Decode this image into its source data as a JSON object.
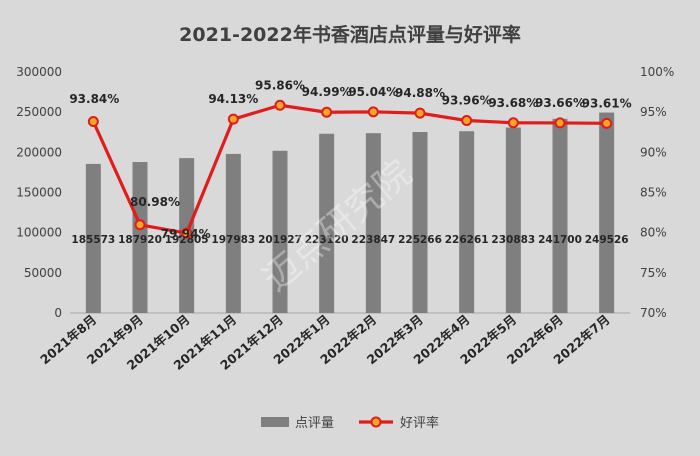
{
  "chart_data": {
    "type": "bar+line",
    "title": "2021-2022年书香酒店点评量与好评率",
    "categories": [
      "2021年8月",
      "2021年9月",
      "2021年10月",
      "2021年11月",
      "2021年12月",
      "2022年1月",
      "2022年2月",
      "2022年3月",
      "2022年4月",
      "2022年5月",
      "2022年6月",
      "2022年7月"
    ],
    "y_left": {
      "min": 0,
      "max": 300000,
      "step": 50000,
      "ticks": [
        "0",
        "50000",
        "100000",
        "150000",
        "200000",
        "250000",
        "300000"
      ]
    },
    "y_right": {
      "min": 70,
      "max": 100,
      "step": 5,
      "ticks": [
        "70%",
        "75%",
        "80%",
        "85%",
        "90%",
        "95%",
        "100%"
      ]
    },
    "series": [
      {
        "name": "点评量",
        "type": "bar",
        "axis": "left",
        "color": "#7f7f7f",
        "values": [
          185573,
          187920,
          192805,
          197983,
          201927,
          223120,
          223847,
          225266,
          226261,
          230883,
          241700,
          249526
        ],
        "labels": [
          "185573",
          "187920",
          "192805",
          "197983",
          "201927",
          "223120",
          "223847",
          "225266",
          "226261",
          "230883",
          "241700",
          "249526"
        ]
      },
      {
        "name": "好评率",
        "type": "line",
        "axis": "right",
        "color": "#e01c1c",
        "marker_fill": "#f5a623",
        "values": [
          93.84,
          80.98,
          79.94,
          94.13,
          95.86,
          94.99,
          95.04,
          94.88,
          93.96,
          93.68,
          93.66,
          93.61
        ],
        "labels": [
          "93.84%",
          "80.98%",
          "79.94%",
          "94.13%",
          "95.86%",
          "94.99%",
          "95.04%",
          "94.88%",
          "93.96%",
          "93.68%",
          "93.66%",
          "93.61%"
        ]
      }
    ],
    "grid": false,
    "legend": "bottom-center",
    "watermark": "迈点研究院"
  }
}
